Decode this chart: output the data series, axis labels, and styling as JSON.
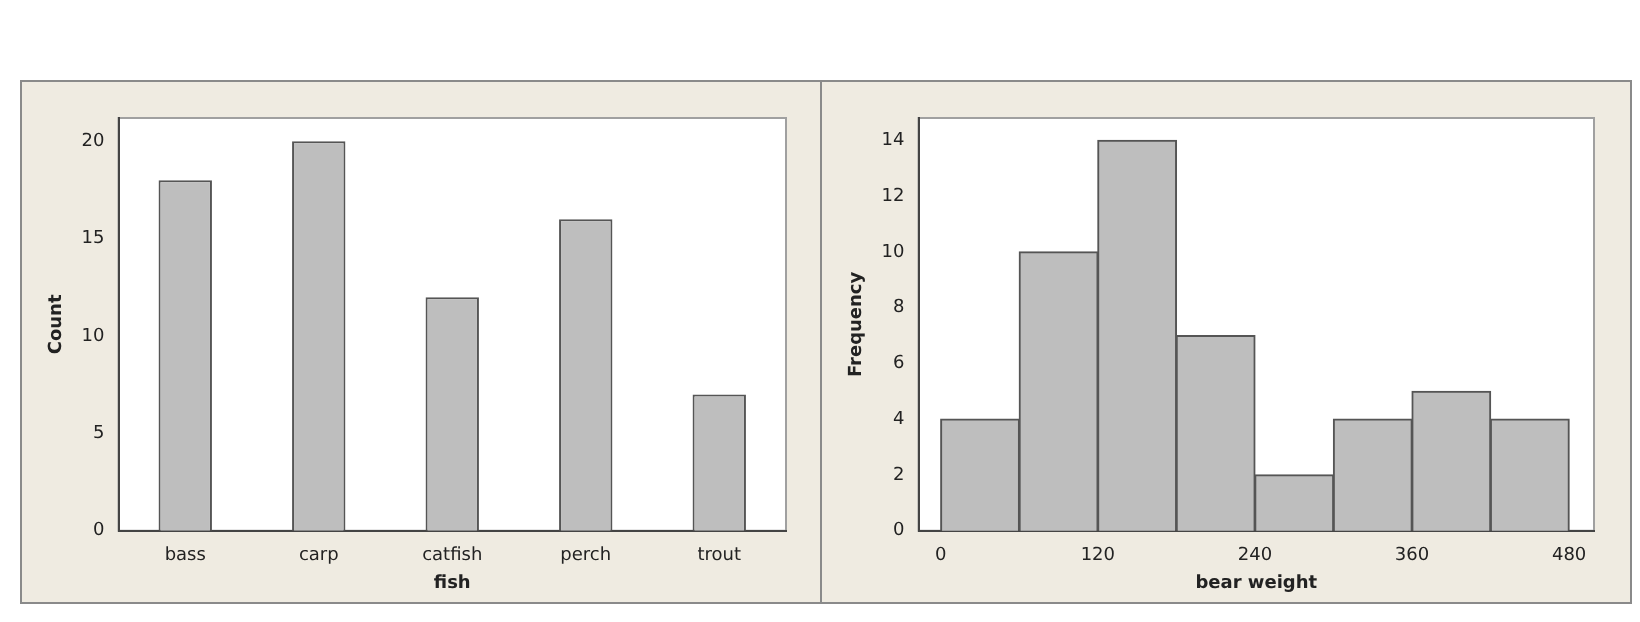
{
  "chart_data": [
    {
      "type": "bar",
      "xlabel": "fish",
      "ylabel": "Count",
      "categories": [
        "bass",
        "carp",
        "catfish",
        "perch",
        "trout"
      ],
      "values": [
        18,
        20,
        12,
        16,
        7
      ],
      "color": "#bebebe",
      "ylim": [
        0,
        21.2
      ],
      "yticks": [
        0,
        5,
        10,
        15,
        20
      ],
      "grid": false,
      "legend": false
    },
    {
      "type": "histogram",
      "xlabel": "bear weight",
      "ylabel": "Frequency",
      "bins": [
        0,
        60,
        120,
        180,
        240,
        300,
        360,
        420,
        480
      ],
      "values": [
        4,
        10,
        14,
        7,
        2,
        4,
        5,
        4
      ],
      "color": "#bebebe",
      "xlim": [
        -17,
        499
      ],
      "xticks": [
        0,
        120,
        240,
        360,
        480
      ],
      "ylim": [
        0,
        14.8
      ],
      "yticks": [
        0,
        2,
        4,
        6,
        8,
        10,
        12,
        14
      ],
      "grid": false,
      "legend": false
    }
  ]
}
